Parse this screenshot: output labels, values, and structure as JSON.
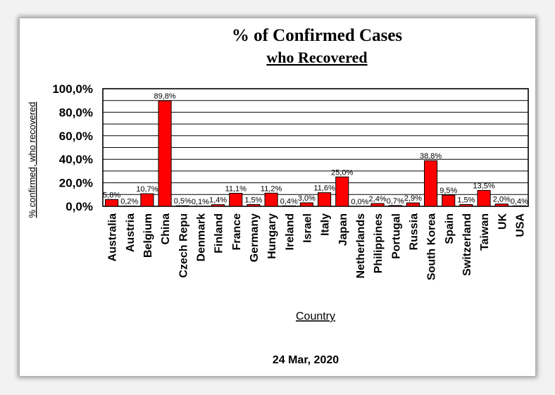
{
  "chart_data": {
    "type": "bar",
    "title": "% of Confirmed Cases",
    "subtitle": "who Recovered",
    "xlabel": "Country",
    "ylabel": "% confirmed, who recovered",
    "date": "24 Mar, 2020",
    "ylim": [
      0,
      100
    ],
    "yticks": [
      "0,0%",
      "20,0%",
      "40,0%",
      "60,0%",
      "80,0%",
      "100,0%"
    ],
    "grid": true,
    "legend": "none",
    "bar_color": "#ff0000",
    "categories": [
      "Australia",
      "Austria",
      "Belgium",
      "China",
      "Czech Repu",
      "Denmark",
      "Finland",
      "France",
      "Germany",
      "Hungary",
      "Ireland",
      "Israel",
      "Italy",
      "Japan",
      "Netherlands",
      "Philippines",
      "Portugal",
      "Russia",
      "South Korea",
      "Spain",
      "Switzerland",
      "Taiwan",
      "UK",
      "USA"
    ],
    "values": [
      5.8,
      0.2,
      10.7,
      89.8,
      0.5,
      0.1,
      1.4,
      11.1,
      1.5,
      11.2,
      0.4,
      3.0,
      11.6,
      25.0,
      0.0,
      2.4,
      0.7,
      2.9,
      38.8,
      9.5,
      1.5,
      13.5,
      2.0,
      0.4
    ],
    "labels": [
      "5,8%",
      "0,2%",
      "10,7%",
      "89,8%",
      "0,5%",
      "0,1%",
      "1,4%",
      "11,1%",
      "1,5%",
      "11,2%",
      "0,4%",
      "3,0%",
      "11,6%",
      "25,0%",
      "0,0%",
      "2,4%",
      "0,7%",
      "2,9%",
      "38,8%",
      "9,5%",
      "1,5%",
      "13,5%",
      "2,0%",
      "0,4%"
    ]
  }
}
